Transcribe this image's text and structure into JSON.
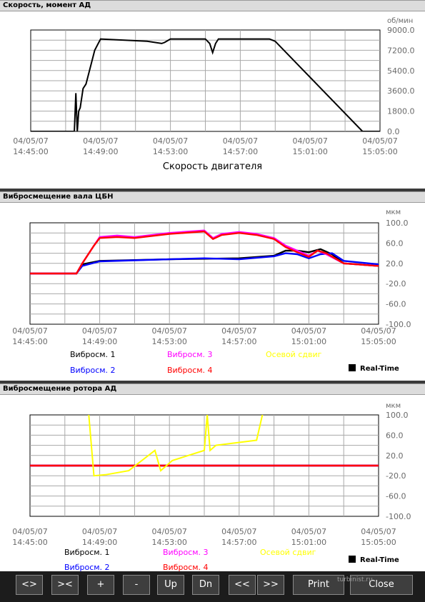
{
  "panels": [
    {
      "title": "Скорость, момент АД",
      "unit": "об/мин",
      "chart_title": "Скорость двигателя"
    },
    {
      "title": "Вибросмещение вала ЦБН",
      "unit": "мкм",
      "legend": [
        {
          "label": "Вибросм. 1",
          "color": "#000000"
        },
        {
          "label": "Вибросм. 3",
          "color": "#ff00ff"
        },
        {
          "label": "Осевой сдвиг",
          "color": "#ffff00"
        },
        {
          "label": "Вибросм. 2",
          "color": "#0000ff"
        },
        {
          "label": "Вибросм. 4",
          "color": "#ff0000"
        }
      ],
      "realtime_label": "Real-Time"
    },
    {
      "title": "Вибросмещение ротора АД",
      "unit": "мкм",
      "legend": [
        {
          "label": "Вибросм. 1",
          "color": "#000000"
        },
        {
          "label": "Вибросм. 3",
          "color": "#ff00ff"
        },
        {
          "label": "Осевой сдвиг",
          "color": "#ffff00"
        },
        {
          "label": "Вибросм. 2",
          "color": "#0000ff"
        },
        {
          "label": "Вибросм. 4",
          "color": "#ff0000"
        }
      ],
      "realtime_label": "Real-Time"
    }
  ],
  "toolbar": {
    "buttons": [
      "<>",
      "><",
      "+",
      "-",
      "Up",
      "Dn",
      "<<",
      ">>",
      "Print",
      "Close"
    ],
    "watermark": "turbinist.ru"
  },
  "chart_data": [
    {
      "type": "line",
      "title": "Скорость двигателя",
      "ylabel": "об/мин",
      "x_ticks": [
        "04/05/07\n14:45:00",
        "04/05/07\n14:49:00",
        "04/05/07\n14:53:00",
        "04/05/07\n14:57:00",
        "04/05/07\n15:01:00",
        "04/05/07\n15:05:00"
      ],
      "xlim": [
        "14:45:00",
        "15:05:00"
      ],
      "y_ticks": [
        "9000.0",
        "7200.0",
        "5400.0",
        "3600.0",
        "1800.0",
        "0.0"
      ],
      "ylim": [
        0,
        9000
      ],
      "grid": true,
      "series": [
        {
          "color": "#000000",
          "x": [
            "14:45:00",
            "14:47:30",
            "14:47:35",
            "14:47:40",
            "14:47:45",
            "14:47:50",
            "14:48:00",
            "14:48:10",
            "14:48:40",
            "14:49:00",
            "14:51:40",
            "14:52:30",
            "14:52:40",
            "14:53:00",
            "14:55:00",
            "14:55:15",
            "14:55:25",
            "14:55:35",
            "14:55:45",
            "14:56:00",
            "14:58:40",
            "14:59:00",
            "15:04:00",
            "15:05:00"
          ],
          "values": [
            0,
            0,
            3400,
            0,
            1800,
            2100,
            3800,
            4200,
            7200,
            8200,
            8000,
            7800,
            7900,
            8200,
            8200,
            7800,
            7000,
            7800,
            8200,
            8200,
            8200,
            8000,
            0,
            0
          ]
        }
      ]
    },
    {
      "type": "line",
      "ylabel": "мкм",
      "x_ticks": [
        "04/05/07\n14:45:00",
        "04/05/07\n14:49:00",
        "04/05/07\n14:53:00",
        "04/05/07\n14:57:00",
        "04/05/07\n15:01:00",
        "04/05/07\n15:05:00"
      ],
      "xlim": [
        "14:45:00",
        "15:05:00"
      ],
      "y_ticks": [
        "100.0",
        "60.0",
        "20.0",
        "-20.0",
        "-60.0",
        "-100.0"
      ],
      "ylim": [
        -100,
        100
      ],
      "grid": true,
      "legend": "bottom",
      "series": [
        {
          "name": "Вибросм. 1",
          "color": "#000000",
          "x": [
            "14:45:00",
            "14:47:40",
            "14:48:00",
            "14:49:00",
            "14:53:00",
            "14:57:00",
            "14:59:00",
            "14:59:40",
            "15:00:20",
            "15:01:00",
            "15:01:40",
            "15:02:20",
            "15:03:00",
            "15:05:00"
          ],
          "values": [
            0,
            0,
            18,
            25,
            28,
            30,
            35,
            45,
            45,
            42,
            48,
            38,
            20,
            15
          ]
        },
        {
          "name": "Вибросм. 2",
          "color": "#0000ff",
          "x": [
            "14:45:00",
            "14:47:40",
            "14:48:00",
            "14:49:00",
            "14:51:00",
            "14:53:00",
            "14:55:00",
            "14:57:00",
            "14:59:00",
            "14:59:40",
            "15:00:20",
            "15:01:00",
            "15:01:40",
            "15:02:20",
            "15:03:00",
            "15:05:00"
          ],
          "values": [
            0,
            0,
            15,
            24,
            26,
            28,
            30,
            28,
            34,
            40,
            38,
            30,
            38,
            40,
            25,
            18
          ]
        },
        {
          "name": "Вибросм. 3",
          "color": "#ff00ff",
          "x": [
            "14:45:00",
            "14:47:40",
            "14:48:00",
            "14:48:40",
            "14:49:00",
            "14:50:00",
            "14:51:00",
            "14:53:00",
            "14:55:00",
            "14:55:30",
            "14:56:00",
            "14:57:00",
            "14:58:00",
            "14:59:00",
            "14:59:40",
            "15:00:20",
            "15:01:00",
            "15:01:30",
            "15:02:00",
            "15:03:00",
            "15:05:00"
          ],
          "values": [
            0,
            0,
            20,
            55,
            72,
            75,
            72,
            80,
            85,
            70,
            78,
            82,
            78,
            70,
            55,
            45,
            35,
            45,
            38,
            20,
            15
          ]
        },
        {
          "name": "Вибросм. 4",
          "color": "#ff0000",
          "x": [
            "14:45:00",
            "14:47:40",
            "14:48:00",
            "14:48:40",
            "14:49:00",
            "14:50:00",
            "14:51:00",
            "14:53:00",
            "14:55:00",
            "14:55:30",
            "14:56:00",
            "14:57:00",
            "14:58:00",
            "14:59:00",
            "14:59:40",
            "15:00:20",
            "15:01:00",
            "15:01:30",
            "15:02:00",
            "15:03:00",
            "15:05:00"
          ],
          "values": [
            0,
            0,
            20,
            55,
            70,
            72,
            70,
            78,
            83,
            68,
            76,
            80,
            76,
            68,
            52,
            42,
            33,
            45,
            40,
            20,
            15
          ]
        },
        {
          "name": "Осевой сдвиг",
          "color": "#ffff00",
          "x": [],
          "values": []
        }
      ]
    },
    {
      "type": "line",
      "ylabel": "мкм",
      "x_ticks": [
        "04/05/07\n14:45:00",
        "04/05/07\n14:49:00",
        "04/05/07\n14:53:00",
        "04/05/07\n14:57:00",
        "04/05/07\n15:01:00",
        "04/05/07\n15:05:00"
      ],
      "xlim": [
        "14:45:00",
        "15:05:00"
      ],
      "y_ticks": [
        "100.0",
        "60.0",
        "20.0",
        "-20.0",
        "-60.0",
        "-100.0"
      ],
      "ylim": [
        -100,
        100
      ],
      "grid": true,
      "legend": "bottom",
      "series": [
        {
          "name": "Вибросм. 1",
          "color": "#000000",
          "x": [
            "14:45:00",
            "14:47:45",
            "14:48:00",
            "14:53:00",
            "15:00:00",
            "15:02:00",
            "15:03:00",
            "15:05:00"
          ],
          "values": [
            0,
            0,
            0,
            0,
            0,
            0,
            0,
            0
          ]
        },
        {
          "name": "Вибросм. 2",
          "color": "#0000ff",
          "x": [
            "14:45:00",
            "14:49:00",
            "14:53:00",
            "14:57:00",
            "15:01:00",
            "15:03:00",
            "15:05:00"
          ],
          "values": [
            0,
            0,
            0,
            0,
            0,
            0,
            0
          ]
        },
        {
          "name": "Вибросм. 3",
          "color": "#ff00ff",
          "x": [
            "14:45:00",
            "14:49:00",
            "14:53:00",
            "14:57:00",
            "15:01:00",
            "15:05:00"
          ],
          "values": [
            0,
            0,
            0,
            0,
            0,
            0
          ]
        },
        {
          "name": "Вибросм. 4",
          "color": "#ff0000",
          "x": [
            "14:45:00",
            "14:49:00",
            "14:53:00",
            "14:57:00",
            "15:01:00",
            "15:05:00"
          ],
          "values": [
            0,
            0,
            0,
            0,
            0,
            0
          ]
        },
        {
          "name": "Осевой сдвиг",
          "color": "#ffff00",
          "x": [
            "14:48:15",
            "14:48:40",
            "14:49:20",
            "14:50:40",
            "14:52:10",
            "14:52:30",
            "14:52:50",
            "14:53:10",
            "14:55:00",
            "14:55:10",
            "14:55:20",
            "14:55:40",
            "14:58:00",
            "14:58:40"
          ],
          "values": [
            150,
            -20,
            -18,
            -10,
            30,
            -10,
            0,
            10,
            30,
            100,
            30,
            40,
            50,
            150
          ]
        }
      ]
    }
  ]
}
